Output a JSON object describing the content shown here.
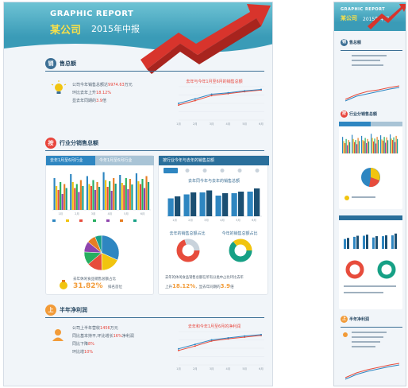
{
  "header": {
    "title_en": "GRAPHIC REPORT",
    "company": "某公司",
    "year_title": "2015年中报"
  },
  "section1": {
    "badge": "销",
    "title": "售总额",
    "line1": "公司今年销售总额达",
    "line1_value": "9974.63",
    "line1_unit": "万元",
    "line2": "环比去年上升",
    "line2_value": "18.12%",
    "line3": "显去年同期的",
    "line3_value": "3.9",
    "line3_unit": "倍",
    "chart_title": "去年与今年1月至6月的销售总额"
  },
  "section2": {
    "badge": "按",
    "title": "行业分销售总额",
    "left_tab1": "去年1月至6月行业",
    "left_tab2": "今年1月至6月行业",
    "right_tab": "按行业今年与去年的销售总额",
    "right_chart_title": "去年同今年与去年的销售总额",
    "donut1_title": "去年的销售总额占比",
    "donut2_title": "今年的销售总额占比",
    "pie_text": "去年休闲食品销售总额占比",
    "pie_value": "31.82%",
    "pie_tail": "排名首位",
    "right_text1": "去年的休闲食品销售总额在所有分类中占比环比去年",
    "right_text2": "上升",
    "right_value1": "18.12%",
    "right_text3": "，显去年同期的",
    "right_value2": "3.9",
    "right_text4": "倍"
  },
  "section3": {
    "badge": "上",
    "title": "半年净利润",
    "line1": "公司上半年营收",
    "line1_value": "1456",
    "line1_unit": "万元",
    "line2": "同比基本持平,环比增长",
    "line2_value": "16%",
    "line2_tail": "净利润",
    "line3": "同比下降",
    "line3_value": "8%",
    "line4": "环比增",
    "line4_value": "10%",
    "chart_title": "去年和今年1月至6月的净利润"
  },
  "chart_data": [
    {
      "type": "line",
      "title": "去年与今年1月至6月的销售总额",
      "x": [
        "1月",
        "2月",
        "3月",
        "4月",
        "5月",
        "6月"
      ],
      "series": [
        {
          "values": [
            540,
            700,
            880,
            950,
            1020,
            1080
          ]
        },
        {
          "values": [
            600,
            760,
            930,
            980,
            1050,
            1100
          ]
        }
      ],
      "ylim": [
        0,
        1200
      ]
    },
    {
      "type": "bar",
      "categories": [
        "1月",
        "2月",
        "3月",
        "4月",
        "5月",
        "6月"
      ],
      "series": [
        {
          "values": [
            80,
            90,
            85,
            95,
            88,
            92
          ]
        },
        {
          "values": [
            60,
            70,
            65,
            75,
            68,
            72
          ]
        },
        {
          "values": [
            50,
            55,
            60,
            58,
            62,
            65
          ]
        },
        {
          "values": [
            70,
            65,
            75,
            72,
            80,
            78
          ]
        },
        {
          "values": [
            40,
            45,
            50,
            48,
            52,
            55
          ]
        },
        {
          "values": [
            65,
            75,
            70,
            80,
            78,
            85
          ]
        },
        {
          "values": [
            55,
            60,
            58,
            66,
            64,
            70
          ]
        }
      ],
      "ylim": [
        0,
        100
      ]
    },
    {
      "type": "pie",
      "values": [
        31.82,
        18,
        14,
        12,
        10,
        8,
        6.18
      ]
    },
    {
      "type": "bar",
      "title": "去年同今年与去年的销售总额",
      "categories": [
        "1月",
        "2月",
        "3月",
        "4月",
        "5月",
        "6月"
      ],
      "series": [
        {
          "values": [
            45,
            55,
            60,
            52,
            58,
            62
          ]
        },
        {
          "values": [
            50,
            60,
            65,
            58,
            62,
            70
          ]
        }
      ],
      "ylim": [
        0,
        80
      ]
    },
    {
      "type": "line",
      "title": "去年和今年1月至6月的净利润",
      "x": [
        "1月",
        "2月",
        "3月",
        "4月",
        "5月",
        "6月"
      ],
      "series": [
        {
          "values": [
            520,
            680,
            860,
            940,
            1000,
            1060
          ]
        },
        {
          "values": [
            580,
            740,
            900,
            970,
            1040,
            1090
          ]
        }
      ],
      "ylim": [
        0,
        1200
      ]
    }
  ],
  "colors": {
    "header": "#3a9bb7",
    "dark": "#2a4a64",
    "accent_red": "#e8453c",
    "accent_orange": "#f29b38",
    "series": [
      "#2e86c1",
      "#f1c40f",
      "#e74c3c",
      "#27ae60",
      "#8e44ad",
      "#e67e22",
      "#16a085"
    ]
  }
}
